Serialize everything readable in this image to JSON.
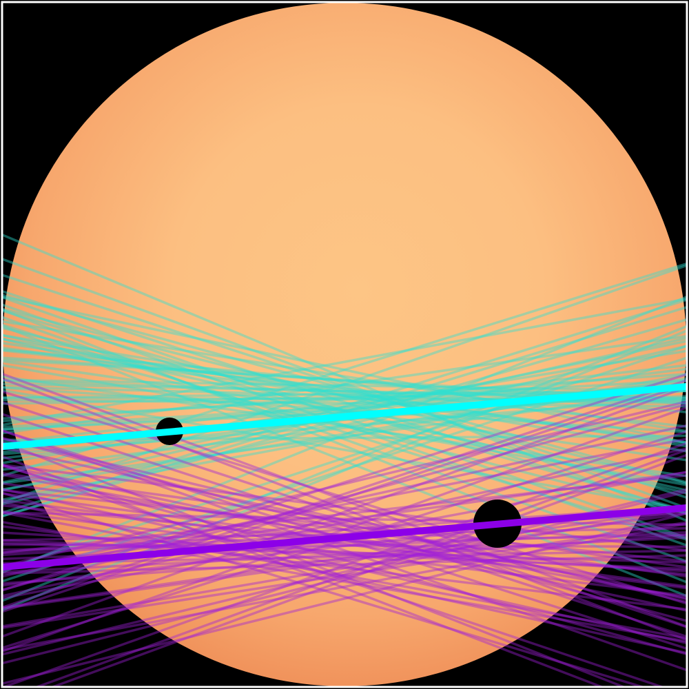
{
  "scene": {
    "description_colors": {
      "background": "#000000",
      "frame": "#ffffff",
      "star_center": "#fdc585",
      "star_mid": "#fcb87e",
      "star_edge": "#f1905a",
      "planet": "#000000",
      "cyan_fit": "#00ffff",
      "cyan_samples": "#2ee0d2",
      "purple_fit": "#8c00e8",
      "purple_samples": "#a020d8"
    },
    "objects": {
      "star": "star-disk",
      "planet_small": "transiting-planet-small",
      "planet_large": "transiting-planet-large",
      "cyan_best_fit": "cyan-best-fit-chord",
      "purple_best_fit": "purple-best-fit-chord"
    }
  }
}
